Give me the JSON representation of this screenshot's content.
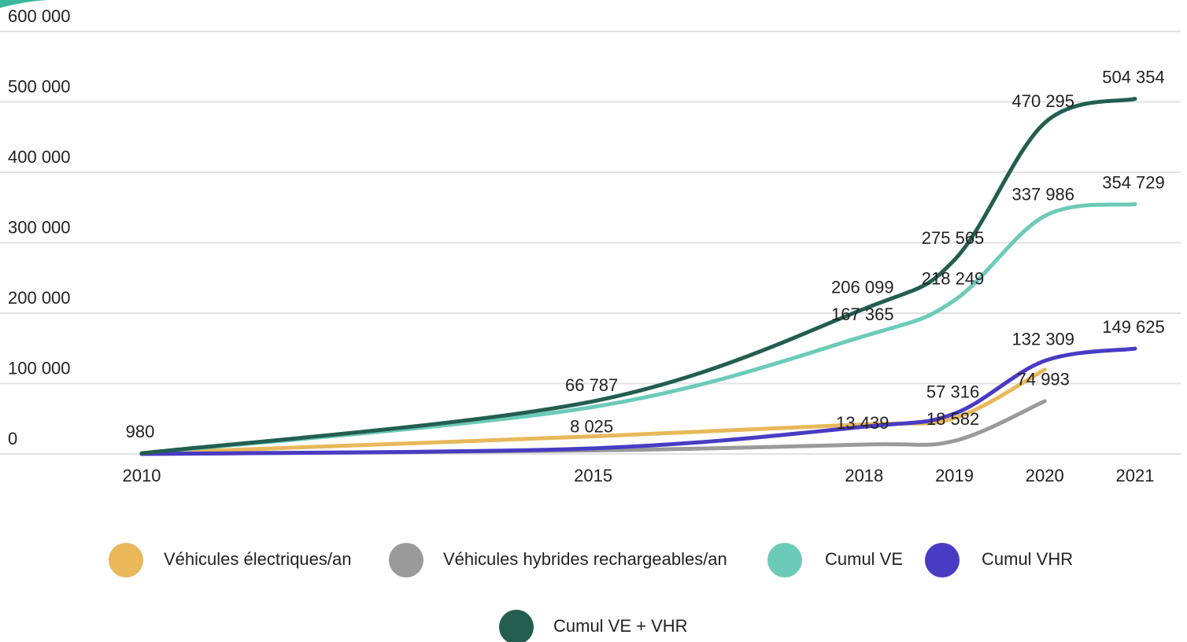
{
  "chart_data": {
    "type": "line",
    "x": [
      2010,
      2015,
      2018,
      2019,
      2020,
      2021
    ],
    "xlim": [
      2010,
      2021
    ],
    "xticks": [
      2010,
      2015,
      2018,
      2019,
      2020,
      2021
    ],
    "ylim": [
      0,
      600000
    ],
    "yticks": [
      {
        "value": 0,
        "label": "0"
      },
      {
        "value": 100000,
        "label": "100 000"
      },
      {
        "value": 200000,
        "label": "200 000"
      },
      {
        "value": 300000,
        "label": "300 000"
      },
      {
        "value": 400000,
        "label": "400 000"
      },
      {
        "value": 500000,
        "label": "500 000"
      },
      {
        "value": 600000,
        "label": "600 000"
      }
    ],
    "grid": true,
    "series": [
      {
        "name": "Véhicules électriques/an",
        "color": "#e8b85a",
        "values": [
          1000,
          25000,
          42000,
          50884,
          119737,
          null
        ],
        "value_labels": [
          null,
          null,
          null,
          null,
          null,
          null
        ]
      },
      {
        "name": "Véhicules hybrides rechargeables/an",
        "color": "#9a9a9a",
        "values": [
          0,
          5000,
          13439,
          18582,
          74993,
          null
        ],
        "value_labels": [
          null,
          null,
          "13 439",
          "18 582",
          "74 993",
          null
        ]
      },
      {
        "name": "Cumul VE",
        "color": "#6ccbb8",
        "values": [
          900,
          66787,
          167365,
          218249,
          337986,
          354729
        ],
        "value_labels": [
          null,
          "66 787",
          "167 365",
          "218 249",
          "337 986",
          "354 729"
        ]
      },
      {
        "name": "Cumul VHR",
        "color": "#4a3bc4",
        "values": [
          80,
          8025,
          38734,
          57316,
          132309,
          149625
        ],
        "value_labels": [
          null,
          "8 025",
          null,
          "57 316",
          "132 309",
          "149 625"
        ]
      },
      {
        "name": "Cumul VE + VHR",
        "color": "#235e50",
        "values": [
          980,
          74812,
          206099,
          275565,
          470295,
          504354
        ],
        "value_labels": [
          "980",
          null,
          "206 099",
          "275 565",
          "470 295",
          "504 354"
        ]
      }
    ]
  }
}
